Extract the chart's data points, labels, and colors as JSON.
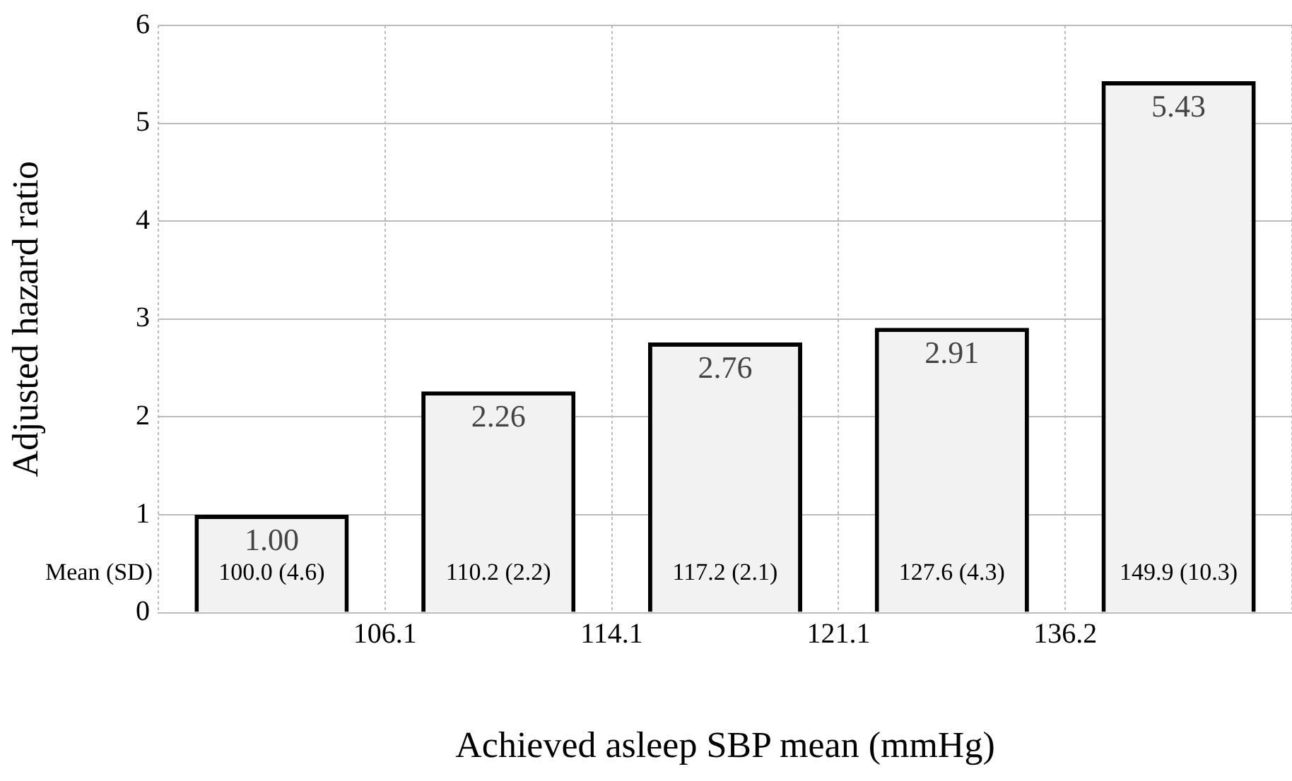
{
  "chart_data": {
    "type": "bar",
    "xlabel": "Achieved asleep SBP mean (mmHg)",
    "ylabel": "Adjusted hazard ratio",
    "categories": [
      null,
      null,
      null,
      null,
      null
    ],
    "values": [
      1.0,
      2.26,
      2.76,
      2.91,
      5.43
    ],
    "value_labels": [
      "1.00",
      "2.26",
      "2.76",
      "2.91",
      "5.43"
    ],
    "color": "#000000",
    "ylim": [
      0,
      6
    ],
    "yticks": [
      0,
      1,
      2,
      3,
      4,
      5,
      6
    ],
    "grid": true,
    "annotations": [
      "Mean (SD)",
      "100.0 (4.6)",
      "110.2 (2.2)",
      "117.2 (2.1)",
      "127.6 (4.3)",
      "149.9 (10.3)",
      "106.1",
      "114.1",
      "121.1",
      "136.2"
    ]
  }
}
